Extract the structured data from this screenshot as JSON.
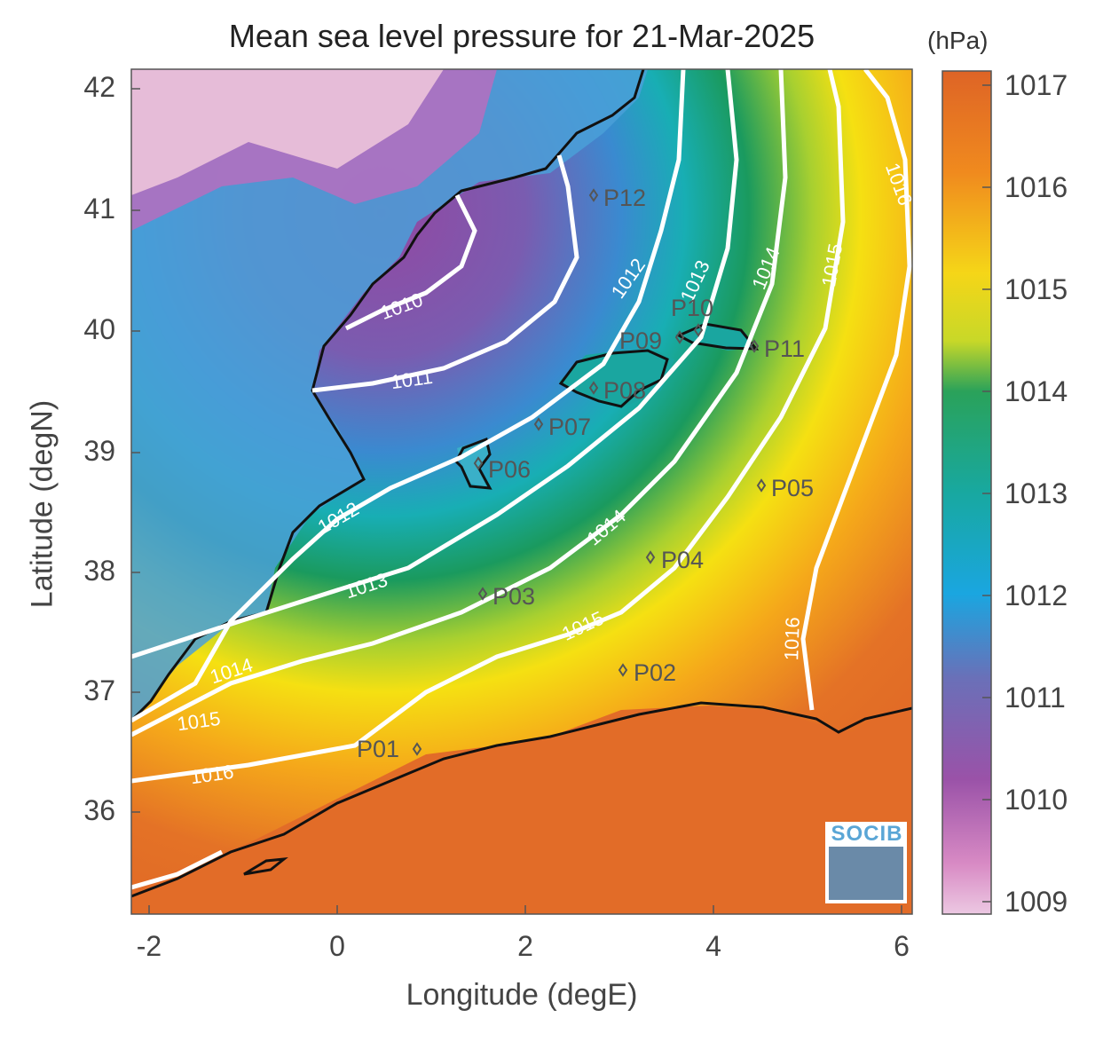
{
  "title": "Mean sea level pressure for 21-Mar-2025",
  "axes": {
    "xlabel": "Longitude (degE)",
    "ylabel": "Latitude (degN)",
    "xticks": [
      "-2",
      "0",
      "2",
      "4",
      "6"
    ],
    "yticks": [
      "42",
      "41",
      "40",
      "39",
      "38",
      "37",
      "36"
    ]
  },
  "colorbar": {
    "unit": "(hPa)",
    "ticks": [
      "1017",
      "1016",
      "1015",
      "1014",
      "1013",
      "1012",
      "1011",
      "1010",
      "1009"
    ],
    "colors": [
      "#e46a28",
      "#f39a1c",
      "#f4e21a",
      "#21a05a",
      "#1aaaa8",
      "#1ea6e0",
      "#6a6ab0",
      "#9a55a8",
      "#e2b6d8"
    ]
  },
  "contours": [
    "1010",
    "1011",
    "1012",
    "1012",
    "1013",
    "1013",
    "1014",
    "1014",
    "1015",
    "1015",
    "1016",
    "1016",
    "1016"
  ],
  "stations": [
    {
      "name": "P01"
    },
    {
      "name": "P02"
    },
    {
      "name": "P03"
    },
    {
      "name": "P04"
    },
    {
      "name": "P05"
    },
    {
      "name": "P06"
    },
    {
      "name": "P07"
    },
    {
      "name": "P08"
    },
    {
      "name": "P09"
    },
    {
      "name": "P10"
    },
    {
      "name": "P11"
    },
    {
      "name": "P12"
    }
  ],
  "logo": {
    "text": "SOCIB"
  }
}
